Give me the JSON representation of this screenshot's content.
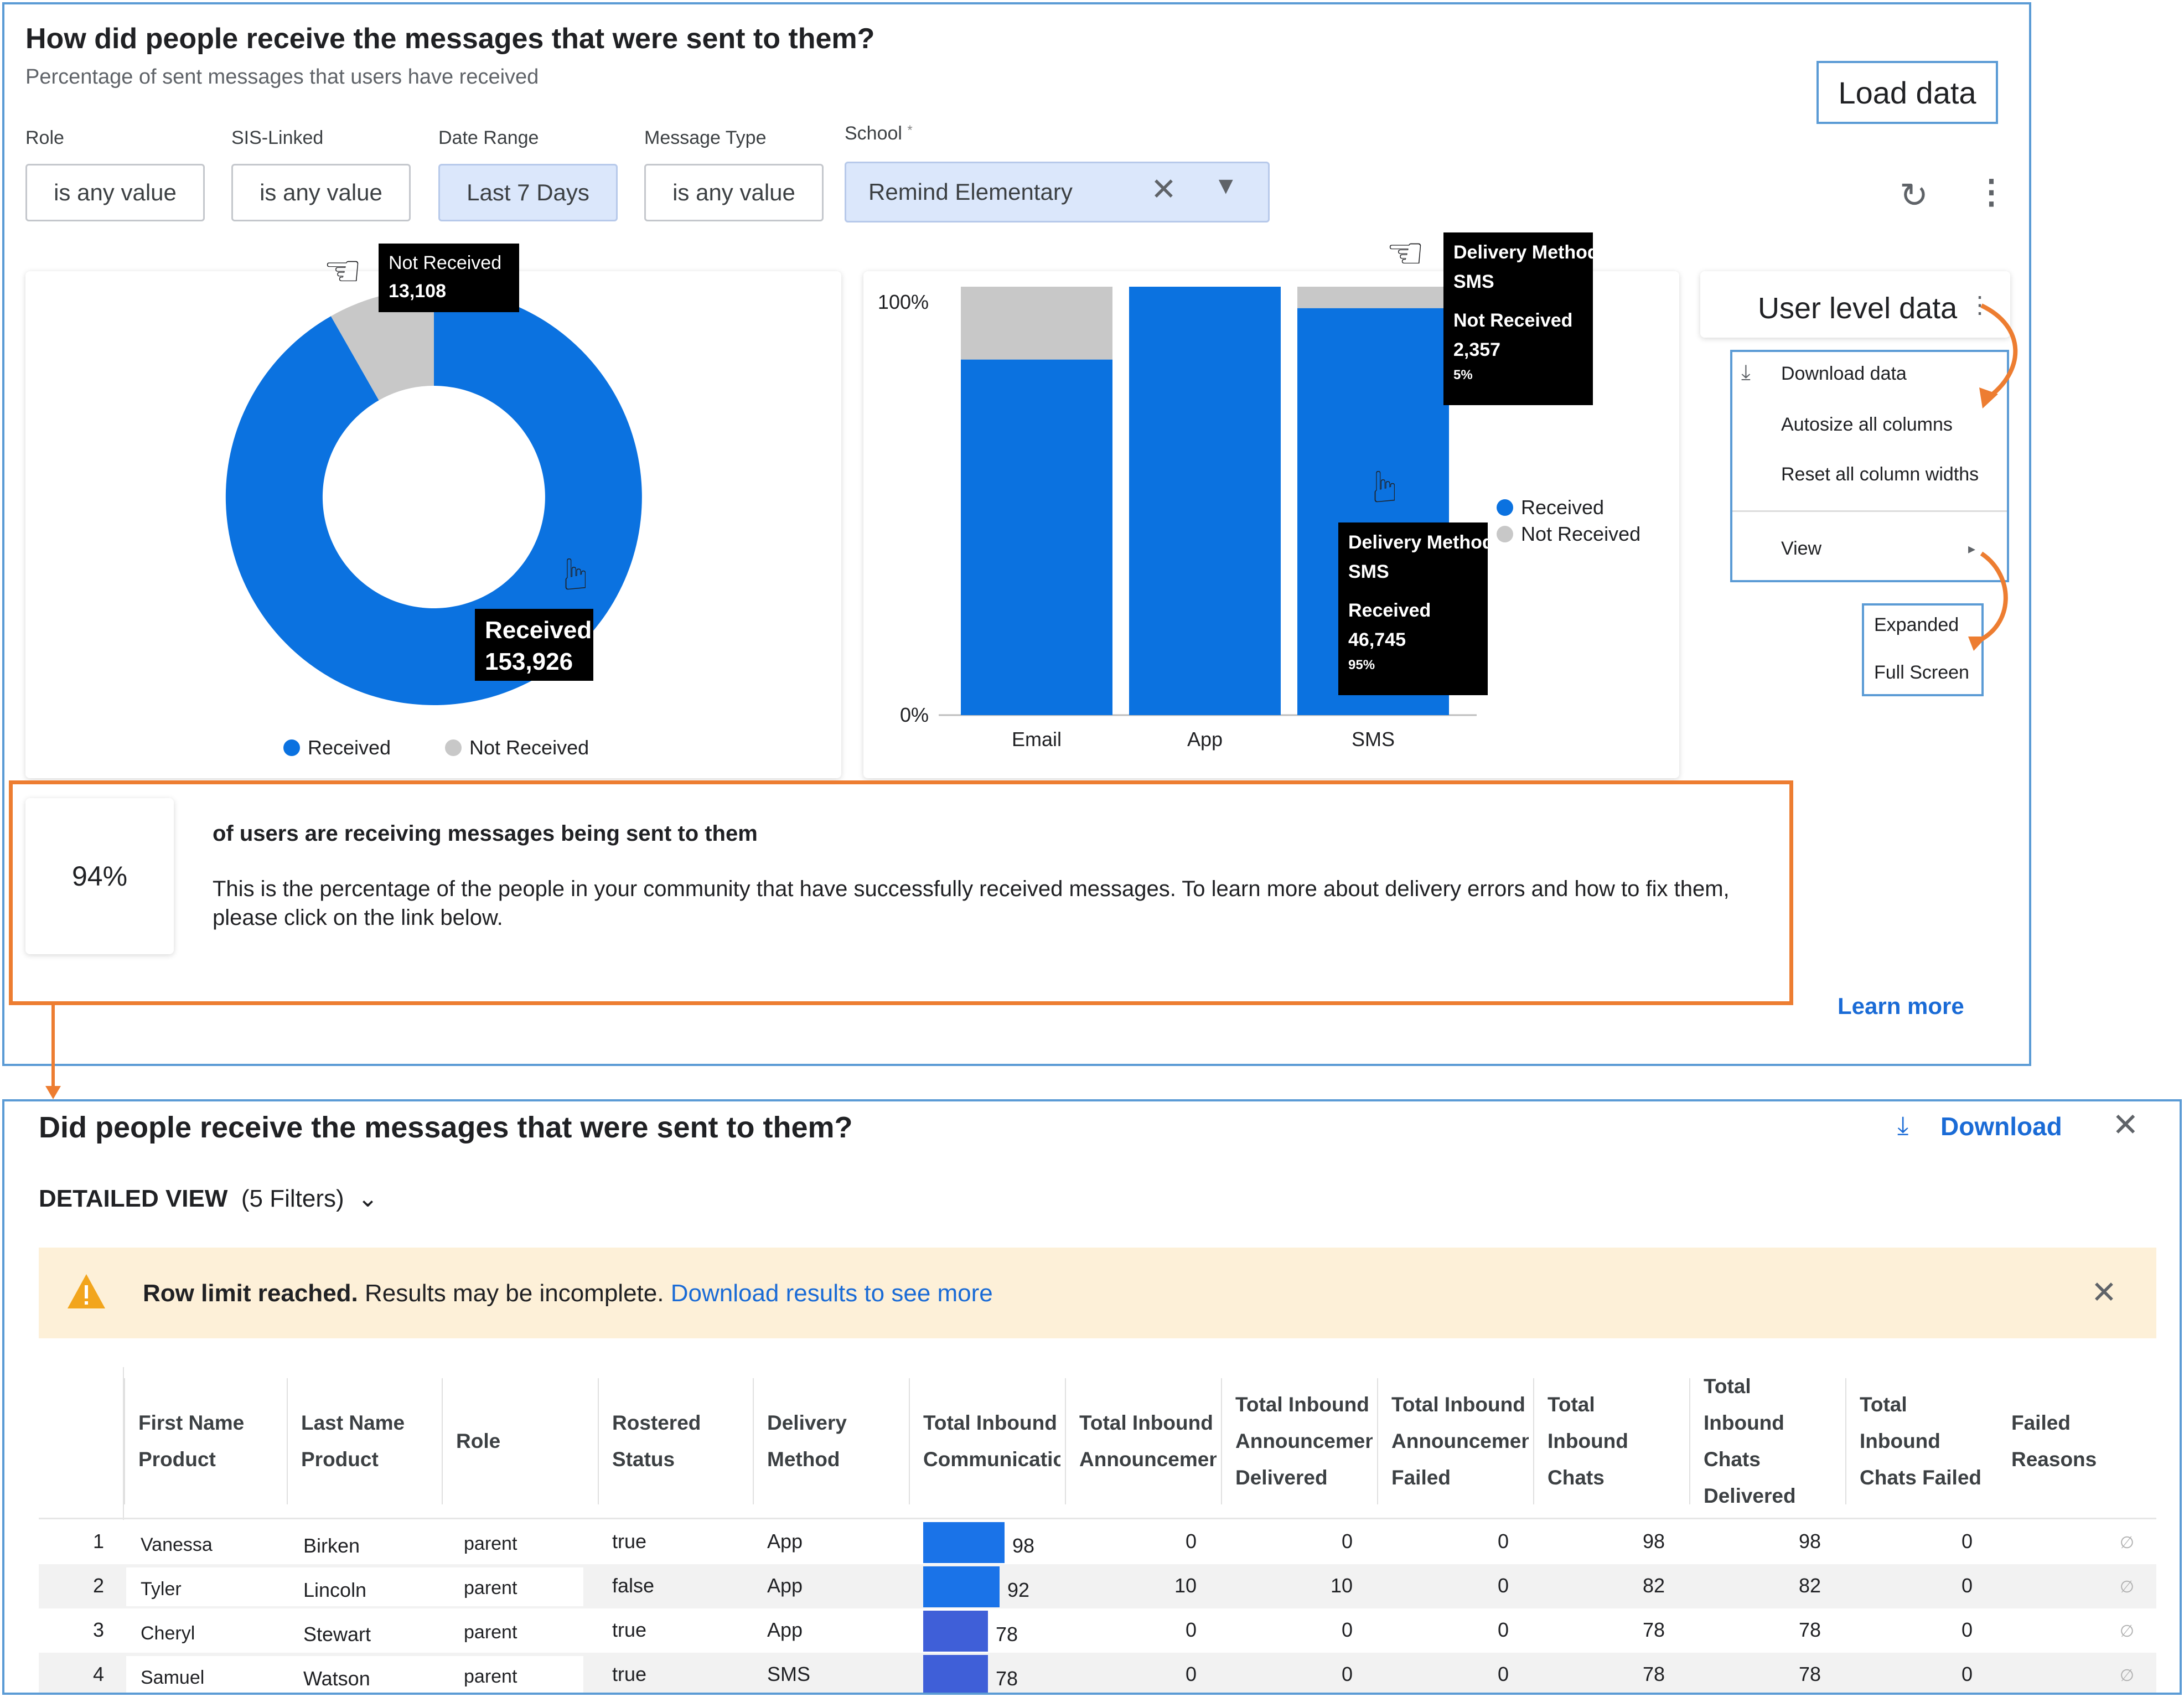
{
  "header": {
    "title": "How did people receive the messages that were sent to them?",
    "subtitle": "Percentage of sent messages that users have received",
    "load_data_label": "Load data"
  },
  "filters": [
    {
      "label": "Role",
      "value": "is any value"
    },
    {
      "label": "SIS-Linked",
      "value": "is any value"
    },
    {
      "label": "Date Range",
      "value": "Last 7 Days"
    },
    {
      "label": "Message Type",
      "value": "is any value"
    },
    {
      "label": "School",
      "required_mark": "*",
      "value": "Remind Elementary"
    }
  ],
  "icons": {
    "refresh": "refresh-icon",
    "more": "more-vert-icon",
    "close": "close-icon",
    "dropdown": "caret-down-icon",
    "hand": "pointing-hand-icon",
    "download": "download-icon",
    "warning": "warning-icon",
    "chevron": "chevron-down-icon"
  },
  "colors": {
    "received": "#0b72e0",
    "not_received": "#c8c8c8",
    "accent_orange": "#ed7d31",
    "link": "#1a6bd6",
    "border": "#5b9bd5"
  },
  "donut": {
    "legend": [
      "Received",
      "Not Received"
    ],
    "tooltip_not_received": {
      "label": "Not Received",
      "value": "13,108"
    },
    "tooltip_received": {
      "label": "Received",
      "value": "153,926"
    }
  },
  "chart_data": {
    "type": "bar",
    "categories": [
      "Email",
      "App",
      "SMS"
    ],
    "series": [
      {
        "name": "Received",
        "values": [
          83,
          100,
          95
        ]
      },
      {
        "name": "Not Received",
        "values": [
          17,
          0,
          5
        ]
      }
    ],
    "ytick_labels": [
      "100%",
      "0%"
    ],
    "ylim": [
      0,
      100
    ],
    "legend": [
      "Received",
      "Not Received"
    ],
    "tooltip_top": {
      "title": "Delivery Method",
      "method": "SMS",
      "label": "Not Received",
      "value": "2,357",
      "pct": "5%"
    },
    "tooltip_bottom": {
      "title": "Delivery Method",
      "method": "SMS",
      "label": "Received",
      "value": "46,745",
      "pct": "95%"
    }
  },
  "user_level": {
    "title": "User level data",
    "menu": [
      "Download data",
      "Autosize all columns",
      "Reset all column widths",
      "View"
    ],
    "submenu": [
      "Expanded",
      "Full Screen"
    ]
  },
  "summary": {
    "value": "94%",
    "heading": "of users are receiving messages being sent to them",
    "body": "This is the percentage of the people in your community that have successfully received messages. To learn more about delivery errors and how to fix them, please click on the link below.",
    "learn_more": "Learn more"
  },
  "detail": {
    "title": "Did people receive the messages that were sent to them?",
    "download_label": "Download",
    "view_label": "DETAILED VIEW",
    "filters_count": "(5 Filters)",
    "banner_bold": "Row limit reached.",
    "banner_text": "Results may be incomplete.",
    "banner_link": "Download results to see more",
    "columns": [
      [
        "First Name",
        "Product"
      ],
      [
        "Last Name",
        "Product"
      ],
      [
        "Role"
      ],
      [
        "Rostered",
        "Status"
      ],
      [
        "Delivery",
        "Method"
      ],
      [
        "Total Inbound",
        "Communicatio"
      ],
      [
        "Total Inbound",
        "Announcement"
      ],
      [
        "Total Inbound",
        "Announcement",
        "Delivered"
      ],
      [
        "Total Inbound",
        "Announcement",
        "Failed"
      ],
      [
        "Total",
        "Inbound",
        "Chats"
      ],
      [
        "Total",
        "Inbound",
        "Chats",
        "Delivered"
      ],
      [
        "Total",
        "Inbound",
        "Chats Failed"
      ],
      [
        "Failed",
        "Reasons"
      ]
    ],
    "rows": [
      {
        "n": "1",
        "first": "Vanessa",
        "last": "Birken",
        "role": "parent",
        "rostered": "true",
        "method": "App",
        "comm": "98",
        "ann": "0",
        "ann_del": "0",
        "ann_fail": "0",
        "chats": "98",
        "chats_del": "98",
        "chats_fail": "0",
        "reasons": "∅"
      },
      {
        "n": "2",
        "first": "Tyler",
        "last": "Lincoln",
        "role": "parent",
        "rostered": "false",
        "method": "App",
        "comm": "92",
        "ann": "10",
        "ann_del": "10",
        "ann_fail": "0",
        "chats": "82",
        "chats_del": "82",
        "chats_fail": "0",
        "reasons": "∅"
      },
      {
        "n": "3",
        "first": "Cheryl",
        "last": "Stewart",
        "role": "parent",
        "rostered": "true",
        "method": "App",
        "comm": "78",
        "ann": "0",
        "ann_del": "0",
        "ann_fail": "0",
        "chats": "78",
        "chats_del": "78",
        "chats_fail": "0",
        "reasons": "∅"
      },
      {
        "n": "4",
        "first": "Samuel",
        "last": "Watson",
        "role": "parent",
        "rostered": "true",
        "method": "SMS",
        "comm": "78",
        "ann": "0",
        "ann_del": "0",
        "ann_fail": "0",
        "chats": "78",
        "chats_del": "78",
        "chats_fail": "0",
        "reasons": "∅"
      }
    ]
  }
}
